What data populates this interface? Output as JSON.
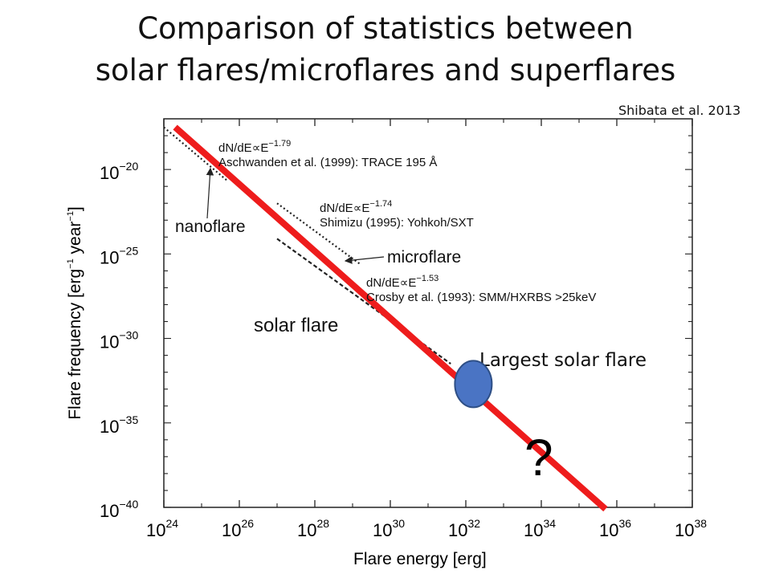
{
  "slide": {
    "title_line1": "Comparison of statistics  between",
    "title_line2": "solar flares/microflares  and  superflares",
    "credit": "Shibata et al. 2013"
  },
  "chart_data": {
    "type": "line",
    "xlabel": "Flare energy [erg]",
    "ylabel_parts": {
      "main": "Flare frequency [erg",
      "sup1": "−1",
      "mid": " year",
      "sup2": "−1",
      "end": "]"
    },
    "x_scale": "log",
    "y_scale": "log",
    "xlim": [
      1e+24,
      1e+38
    ],
    "ylim": [
      1e-40,
      1e-17
    ],
    "x_ticks": [
      {
        "base": "10",
        "exp": "24",
        "value": 24
      },
      {
        "base": "10",
        "exp": "26",
        "value": 26
      },
      {
        "base": "10",
        "exp": "28",
        "value": 28
      },
      {
        "base": "10",
        "exp": "30",
        "value": 30
      },
      {
        "base": "10",
        "exp": "32",
        "value": 32
      },
      {
        "base": "10",
        "exp": "34",
        "value": 34
      },
      {
        "base": "10",
        "exp": "36",
        "value": 36
      },
      {
        "base": "10",
        "exp": "38",
        "value": 38
      }
    ],
    "y_ticks": [
      {
        "base": "10",
        "exp": "−20",
        "value": -20
      },
      {
        "base": "10",
        "exp": "−25",
        "value": -25
      },
      {
        "base": "10",
        "exp": "−30",
        "value": -30
      },
      {
        "base": "10",
        "exp": "−35",
        "value": -35
      },
      {
        "base": "10",
        "exp": "−40",
        "value": -40
      }
    ],
    "series": [
      {
        "style": "dotted",
        "color": "#222222",
        "log_x": [
          24.0,
          25.7
        ],
        "log_y": [
          -17.5,
          -20.7
        ]
      },
      {
        "style": "dotted",
        "color": "#222222",
        "log_x": [
          27.0,
          29.2
        ],
        "log_y": [
          -22.0,
          -25.6
        ]
      },
      {
        "style": "dashed",
        "color": "#222222",
        "log_x": [
          27.0,
          31.6
        ],
        "log_y": [
          -24.1,
          -31.5
        ]
      },
      {
        "style": "solid",
        "color": "#ee1c1c",
        "log_x": [
          24.3,
          35.7
        ],
        "log_y": [
          -17.5,
          -40.1
        ]
      }
    ],
    "annotations": [
      {
        "formula": "dN/dE∝E",
        "exp": "−1.79",
        "source": "Aschwanden et al. (1999): TRACE 195 Å"
      },
      {
        "formula": "dN/dE∝E",
        "exp": "−1.74",
        "source": "Shimizu (1995): Yohkoh/SXT"
      },
      {
        "formula": "dN/dE∝E",
        "exp": "−1.53",
        "source": "Crosby et al. (1993): SMM/HXRBS >25keV"
      }
    ],
    "labels": {
      "nanoflare": "nanoflare",
      "microflare": "microflare",
      "solar_flare": "solar flare",
      "largest": "Largest solar flare",
      "question": "?"
    },
    "marker": {
      "log_x": 32.2,
      "log_y": -32.7,
      "color": "#4a74c4"
    },
    "grid": false,
    "legend": "none"
  }
}
